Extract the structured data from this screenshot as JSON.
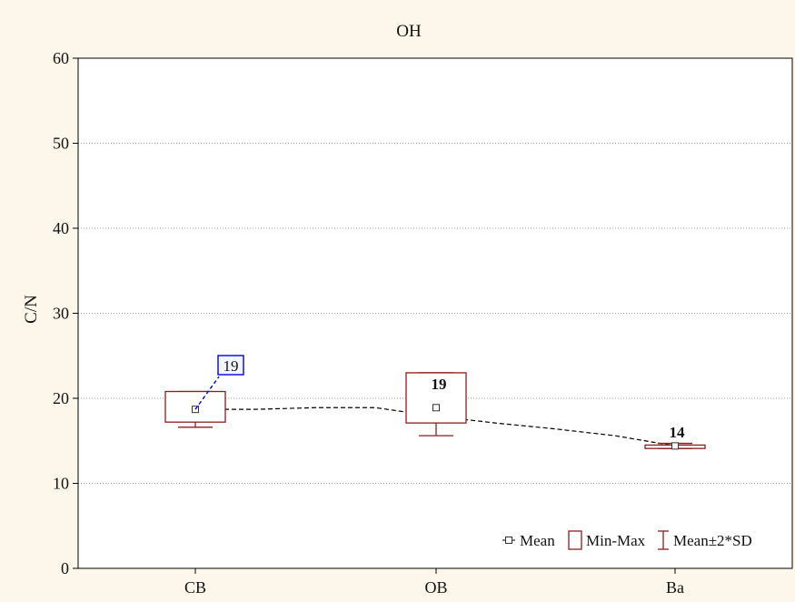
{
  "chart_data": {
    "type": "box",
    "title": "OH",
    "ylabel": "C/N",
    "xlabel": "",
    "categories": [
      "CB",
      "OB",
      "Ba"
    ],
    "ylim": [
      0,
      60
    ],
    "yticks": [
      0,
      10,
      20,
      30,
      40,
      50,
      60
    ],
    "grid": true,
    "series": [
      {
        "name": "Mean",
        "values": [
          18.7,
          18.9,
          14.4
        ]
      },
      {
        "name": "Min-Max",
        "values": [
          [
            17.2,
            20.8
          ],
          [
            17.1,
            23.0
          ],
          [
            14.1,
            14.5
          ]
        ]
      },
      {
        "name": "Mean±2*SD",
        "values": [
          [
            16.6,
            20.8
          ],
          [
            15.6,
            23.0
          ],
          [
            14.1,
            14.7
          ]
        ]
      }
    ],
    "trend_line": [
      18.7,
      18.7,
      18.9,
      18.9,
      17.9,
      17.1,
      16.4,
      15.6,
      14.4
    ],
    "data_labels": [
      "19",
      "19",
      "14"
    ],
    "legend": [
      "Mean",
      "Min-Max",
      "Mean±2*SD"
    ],
    "legend_position": "bottom-right",
    "colors": {
      "box": "#8b1c1c",
      "mean_marker": "#333333",
      "callout": "#0000dd",
      "background": "#fcf7ea",
      "plot_background": "#ffffff",
      "grid": "#999999"
    }
  }
}
